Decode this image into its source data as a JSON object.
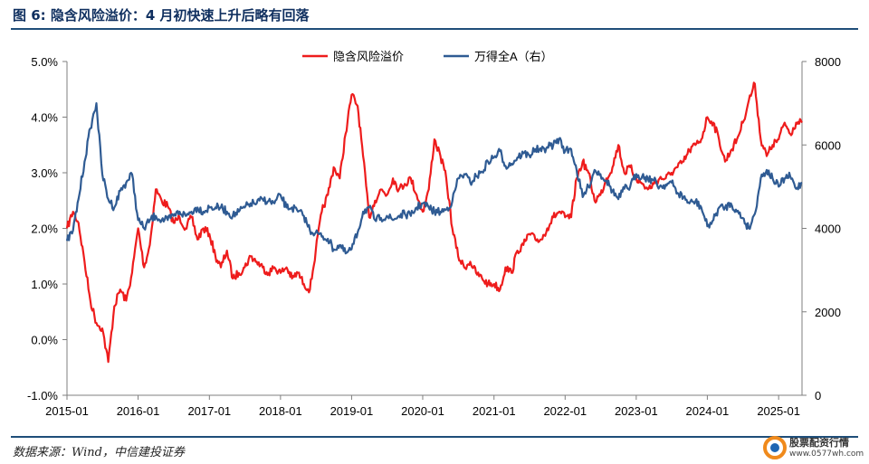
{
  "title": "图 6: 隐含风险溢价：4 月初快速上升后略有回落",
  "source": "数据来源：Wind，中信建投证券",
  "watermark": {
    "name": "股票配资行情",
    "url": "www.0577wh.com"
  },
  "colors": {
    "red_series": "#ee1c1c",
    "blue_series": "#2f5b93",
    "title": "#0f2f5f",
    "rule": "#1f4e79"
  },
  "chart_data": {
    "type": "line",
    "legend_position": "top-center",
    "grid": false,
    "x_ticks": [
      "2015-01",
      "2016-01",
      "2017-01",
      "2018-01",
      "2019-01",
      "2020-01",
      "2021-01",
      "2022-01",
      "2023-01",
      "2024-01",
      "2025-01"
    ],
    "x_range": [
      "2015-01-01",
      "2025-05-01"
    ],
    "y_left": {
      "ticks": [
        "-1.0%",
        "0.0%",
        "1.0%",
        "2.0%",
        "3.0%",
        "4.0%",
        "5.0%"
      ],
      "range": [
        -1.0,
        5.0
      ]
    },
    "y_right": {
      "ticks": [
        "0",
        "2000",
        "4000",
        "6000",
        "8000"
      ],
      "range": [
        0,
        8000
      ]
    },
    "series": [
      {
        "name": "隐含风险溢价",
        "axis": "left",
        "color": "#ee1c1c",
        "points": [
          [
            "2015-01",
            2.0
          ],
          [
            "2015-02",
            2.3
          ],
          [
            "2015-03",
            2.1
          ],
          [
            "2015-04",
            1.4
          ],
          [
            "2015-05",
            0.7
          ],
          [
            "2015-06",
            0.3
          ],
          [
            "2015-07",
            0.2
          ],
          [
            "2015-08",
            -0.4
          ],
          [
            "2015-09",
            0.6
          ],
          [
            "2015-10",
            0.9
          ],
          [
            "2015-11",
            0.7
          ],
          [
            "2015-12",
            1.2
          ],
          [
            "2016-01",
            2.0
          ],
          [
            "2016-02",
            1.3
          ],
          [
            "2016-03",
            1.7
          ],
          [
            "2016-04",
            2.7
          ],
          [
            "2016-05",
            2.5
          ],
          [
            "2016-06",
            2.4
          ],
          [
            "2016-07",
            2.1
          ],
          [
            "2016-08",
            2.2
          ],
          [
            "2016-09",
            2.0
          ],
          [
            "2016-10",
            2.2
          ],
          [
            "2016-11",
            1.8
          ],
          [
            "2016-12",
            2.0
          ],
          [
            "2017-01",
            1.9
          ],
          [
            "2017-02",
            1.5
          ],
          [
            "2017-03",
            1.3
          ],
          [
            "2017-04",
            1.6
          ],
          [
            "2017-05",
            1.1
          ],
          [
            "2017-06",
            1.2
          ],
          [
            "2017-07",
            1.3
          ],
          [
            "2017-08",
            1.5
          ],
          [
            "2017-09",
            1.4
          ],
          [
            "2017-10",
            1.3
          ],
          [
            "2017-11",
            1.2
          ],
          [
            "2017-12",
            1.3
          ],
          [
            "2018-01",
            1.2
          ],
          [
            "2018-02",
            1.3
          ],
          [
            "2018-03",
            1.1
          ],
          [
            "2018-04",
            1.2
          ],
          [
            "2018-05",
            1.0
          ],
          [
            "2018-06",
            0.9
          ],
          [
            "2018-07",
            1.6
          ],
          [
            "2018-08",
            2.3
          ],
          [
            "2018-09",
            2.6
          ],
          [
            "2018-10",
            3.1
          ],
          [
            "2018-11",
            2.9
          ],
          [
            "2018-12",
            3.7
          ],
          [
            "2019-01",
            4.4
          ],
          [
            "2019-02",
            4.2
          ],
          [
            "2019-03",
            3.3
          ],
          [
            "2019-04",
            2.2
          ],
          [
            "2019-05",
            2.5
          ],
          [
            "2019-06",
            2.7
          ],
          [
            "2019-07",
            2.6
          ],
          [
            "2019-08",
            2.9
          ],
          [
            "2019-09",
            2.7
          ],
          [
            "2019-10",
            2.8
          ],
          [
            "2019-11",
            2.9
          ],
          [
            "2019-12",
            2.6
          ],
          [
            "2020-01",
            2.3
          ],
          [
            "2020-02",
            2.7
          ],
          [
            "2020-03",
            3.6
          ],
          [
            "2020-04",
            3.3
          ],
          [
            "2020-05",
            2.9
          ],
          [
            "2020-06",
            2.0
          ],
          [
            "2020-07",
            1.5
          ],
          [
            "2020-08",
            1.3
          ],
          [
            "2020-09",
            1.4
          ],
          [
            "2020-10",
            1.2
          ],
          [
            "2020-11",
            1.1
          ],
          [
            "2020-12",
            1.0
          ],
          [
            "2021-01",
            1.0
          ],
          [
            "2021-02",
            0.9
          ],
          [
            "2021-03",
            1.3
          ],
          [
            "2021-04",
            1.2
          ],
          [
            "2021-05",
            1.6
          ],
          [
            "2021-06",
            1.7
          ],
          [
            "2021-07",
            1.9
          ],
          [
            "2021-08",
            1.8
          ],
          [
            "2021-09",
            1.8
          ],
          [
            "2021-10",
            2.0
          ],
          [
            "2021-11",
            2.2
          ],
          [
            "2021-12",
            2.3
          ],
          [
            "2022-01",
            2.2
          ],
          [
            "2022-02",
            2.2
          ],
          [
            "2022-03",
            2.9
          ],
          [
            "2022-04",
            3.2
          ],
          [
            "2022-05",
            3.0
          ],
          [
            "2022-06",
            2.5
          ],
          [
            "2022-07",
            2.6
          ],
          [
            "2022-08",
            2.9
          ],
          [
            "2022-09",
            3.1
          ],
          [
            "2022-10",
            3.5
          ],
          [
            "2022-11",
            3.0
          ],
          [
            "2022-12",
            3.1
          ],
          [
            "2023-01",
            2.9
          ],
          [
            "2023-02",
            2.8
          ],
          [
            "2023-03",
            2.7
          ],
          [
            "2023-04",
            2.8
          ],
          [
            "2023-05",
            2.9
          ],
          [
            "2023-06",
            2.9
          ],
          [
            "2023-07",
            3.0
          ],
          [
            "2023-08",
            3.1
          ],
          [
            "2023-09",
            3.2
          ],
          [
            "2023-10",
            3.4
          ],
          [
            "2023-11",
            3.5
          ],
          [
            "2023-12",
            3.6
          ],
          [
            "2024-01",
            4.0
          ],
          [
            "2024-02",
            3.9
          ],
          [
            "2024-03",
            3.6
          ],
          [
            "2024-04",
            3.2
          ],
          [
            "2024-05",
            3.4
          ],
          [
            "2024-06",
            3.6
          ],
          [
            "2024-07",
            3.9
          ],
          [
            "2024-08",
            4.3
          ],
          [
            "2024-09",
            4.6
          ],
          [
            "2024-10",
            3.6
          ],
          [
            "2024-11",
            3.3
          ],
          [
            "2024-12",
            3.5
          ],
          [
            "2025-01",
            3.6
          ],
          [
            "2025-02",
            3.9
          ],
          [
            "2025-03",
            3.7
          ],
          [
            "2025-04",
            3.9
          ],
          [
            "2025-05",
            3.9
          ]
        ]
      },
      {
        "name": "万得全A（右）",
        "axis": "right",
        "color": "#2f5b93",
        "points": [
          [
            "2015-01",
            3700
          ],
          [
            "2015-02",
            3950
          ],
          [
            "2015-03",
            4700
          ],
          [
            "2015-04",
            5600
          ],
          [
            "2015-05",
            6400
          ],
          [
            "2015-06",
            7000
          ],
          [
            "2015-07",
            5300
          ],
          [
            "2015-08",
            4700
          ],
          [
            "2015-09",
            4500
          ],
          [
            "2015-10",
            4900
          ],
          [
            "2015-11",
            5100
          ],
          [
            "2015-12",
            5300
          ],
          [
            "2016-01",
            4200
          ],
          [
            "2016-02",
            4000
          ],
          [
            "2016-03",
            4200
          ],
          [
            "2016-04",
            4300
          ],
          [
            "2016-05",
            4200
          ],
          [
            "2016-06",
            4200
          ],
          [
            "2016-07",
            4300
          ],
          [
            "2016-08",
            4400
          ],
          [
            "2016-09",
            4300
          ],
          [
            "2016-10",
            4400
          ],
          [
            "2016-11",
            4500
          ],
          [
            "2016-12",
            4400
          ],
          [
            "2017-01",
            4500
          ],
          [
            "2017-02",
            4500
          ],
          [
            "2017-03",
            4500
          ],
          [
            "2017-04",
            4400
          ],
          [
            "2017-05",
            4300
          ],
          [
            "2017-06",
            4400
          ],
          [
            "2017-07",
            4500
          ],
          [
            "2017-08",
            4600
          ],
          [
            "2017-09",
            4600
          ],
          [
            "2017-10",
            4700
          ],
          [
            "2017-11",
            4650
          ],
          [
            "2017-12",
            4600
          ],
          [
            "2018-01",
            4800
          ],
          [
            "2018-02",
            4500
          ],
          [
            "2018-03",
            4500
          ],
          [
            "2018-04",
            4400
          ],
          [
            "2018-05",
            4300
          ],
          [
            "2018-06",
            3950
          ],
          [
            "2018-07",
            3900
          ],
          [
            "2018-08",
            3800
          ],
          [
            "2018-09",
            3750
          ],
          [
            "2018-10",
            3500
          ],
          [
            "2018-11",
            3600
          ],
          [
            "2018-12",
            3400
          ],
          [
            "2019-01",
            3500
          ],
          [
            "2019-02",
            3900
          ],
          [
            "2019-03",
            4400
          ],
          [
            "2019-04",
            4500
          ],
          [
            "2019-05",
            4200
          ],
          [
            "2019-06",
            4250
          ],
          [
            "2019-07",
            4300
          ],
          [
            "2019-08",
            4200
          ],
          [
            "2019-09",
            4300
          ],
          [
            "2019-10",
            4350
          ],
          [
            "2019-11",
            4300
          ],
          [
            "2019-12",
            4500
          ],
          [
            "2020-01",
            4600
          ],
          [
            "2020-02",
            4500
          ],
          [
            "2020-03",
            4400
          ],
          [
            "2020-04",
            4400
          ],
          [
            "2020-05",
            4450
          ],
          [
            "2020-06",
            4650
          ],
          [
            "2020-07",
            5200
          ],
          [
            "2020-08",
            5300
          ],
          [
            "2020-09",
            5100
          ],
          [
            "2020-10",
            5250
          ],
          [
            "2020-11",
            5350
          ],
          [
            "2020-12",
            5600
          ],
          [
            "2021-01",
            5700
          ],
          [
            "2021-02",
            5850
          ],
          [
            "2021-03",
            5500
          ],
          [
            "2021-04",
            5550
          ],
          [
            "2021-05",
            5700
          ],
          [
            "2021-06",
            5800
          ],
          [
            "2021-07",
            5750
          ],
          [
            "2021-08",
            5900
          ],
          [
            "2021-09",
            5850
          ],
          [
            "2021-10",
            5950
          ],
          [
            "2021-11",
            6000
          ],
          [
            "2021-12",
            6150
          ],
          [
            "2022-01",
            5850
          ],
          [
            "2022-02",
            5900
          ],
          [
            "2022-03",
            5400
          ],
          [
            "2022-04",
            4750
          ],
          [
            "2022-05",
            5000
          ],
          [
            "2022-06",
            5400
          ],
          [
            "2022-07",
            5300
          ],
          [
            "2022-08",
            5150
          ],
          [
            "2022-09",
            4900
          ],
          [
            "2022-10",
            4700
          ],
          [
            "2022-11",
            4950
          ],
          [
            "2022-12",
            5000
          ],
          [
            "2023-01",
            5300
          ],
          [
            "2023-02",
            5250
          ],
          [
            "2023-03",
            5200
          ],
          [
            "2023-04",
            5150
          ],
          [
            "2023-05",
            5000
          ],
          [
            "2023-06",
            5050
          ],
          [
            "2023-07",
            5100
          ],
          [
            "2023-08",
            4850
          ],
          [
            "2023-09",
            4750
          ],
          [
            "2023-10",
            4600
          ],
          [
            "2023-11",
            4650
          ],
          [
            "2023-12",
            4500
          ],
          [
            "2024-01",
            4050
          ],
          [
            "2024-02",
            4200
          ],
          [
            "2024-03",
            4500
          ],
          [
            "2024-04",
            4500
          ],
          [
            "2024-05",
            4600
          ],
          [
            "2024-06",
            4400
          ],
          [
            "2024-07",
            4250
          ],
          [
            "2024-08",
            4000
          ],
          [
            "2024-09",
            4350
          ],
          [
            "2024-10",
            5200
          ],
          [
            "2024-11",
            5400
          ],
          [
            "2024-12",
            5200
          ],
          [
            "2025-01",
            5000
          ],
          [
            "2025-02",
            5200
          ],
          [
            "2025-03",
            5250
          ],
          [
            "2025-04",
            4950
          ],
          [
            "2025-05",
            5100
          ]
        ]
      }
    ]
  }
}
